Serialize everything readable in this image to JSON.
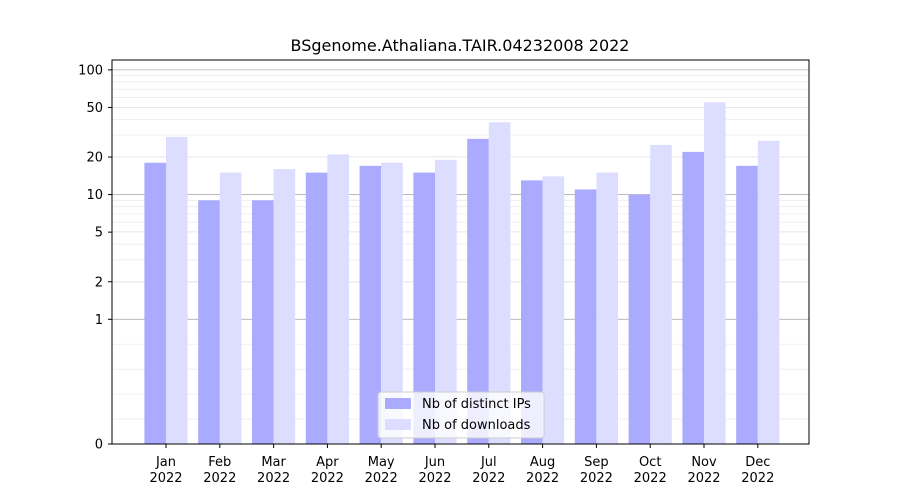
{
  "chart_data": {
    "type": "bar",
    "title": "BSgenome.Athaliana.TAIR.04232008 2022",
    "xlabel": "",
    "ylabel": "",
    "yscale": "symlog",
    "ylim": [
      0,
      120
    ],
    "yticks": [
      0,
      1,
      2,
      5,
      10,
      20,
      50,
      100
    ],
    "grid": true,
    "legend_position": "bottom-center",
    "categories": [
      "Jan\n2022",
      "Feb\n2022",
      "Mar\n2022",
      "Apr\n2022",
      "May\n2022",
      "Jun\n2022",
      "Jul\n2022",
      "Aug\n2022",
      "Sep\n2022",
      "Oct\n2022",
      "Nov\n2022",
      "Dec\n2022"
    ],
    "series": [
      {
        "name": "Nb of distinct IPs",
        "color": "#aaaaff",
        "values": [
          18,
          9,
          9,
          15,
          17,
          15,
          28,
          13,
          11,
          10,
          22,
          17
        ]
      },
      {
        "name": "Nb of downloads",
        "color": "#ddddff",
        "values": [
          29,
          15,
          16,
          21,
          18,
          19,
          38,
          14,
          15,
          25,
          55,
          27
        ]
      }
    ]
  }
}
